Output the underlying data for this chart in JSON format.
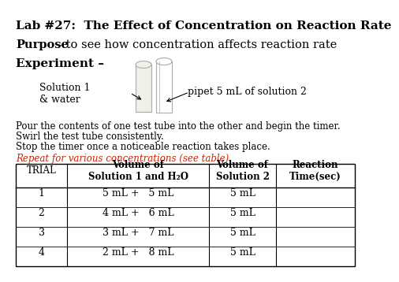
{
  "title_bold": "Lab #27:  The Effect of Concentration on Reaction Rate",
  "purpose_bold": "Purpose",
  "purpose_text": " – to see how concentration affects reaction rate",
  "experiment_bold": "Experiment –",
  "solution_label": "Solution 1\n& water",
  "pipet_label": "pipet 5 mL of solution 2",
  "instructions": [
    "Pour the contents of one test tube into the other and begin the timer.",
    "Swirl the test tube consistently.",
    "Stop the timer once a noticeable reaction takes place."
  ],
  "repeat_text": "Repeat for various concentrations (see table)",
  "repeat_color": "#CC2200",
  "table_headers": [
    "TRIAL",
    "Volume of\nSolution 1 and H₂O",
    "Volume of\nSolution 2",
    "Reaction\nTime(sec)"
  ],
  "table_rows": [
    [
      "1",
      "5 mL +   5 mL",
      "5 mL",
      ""
    ],
    [
      "2",
      "4 mL +   6 mL",
      "5 mL",
      ""
    ],
    [
      "3",
      "3 mL +   7 mL",
      "5 mL",
      ""
    ],
    [
      "4",
      "2 mL +   8 mL",
      "5 mL",
      ""
    ]
  ],
  "bg_color": "#ffffff",
  "text_color": "#000000",
  "tt_color": "#f0f0e8",
  "tt_border": "#aaaaaa"
}
